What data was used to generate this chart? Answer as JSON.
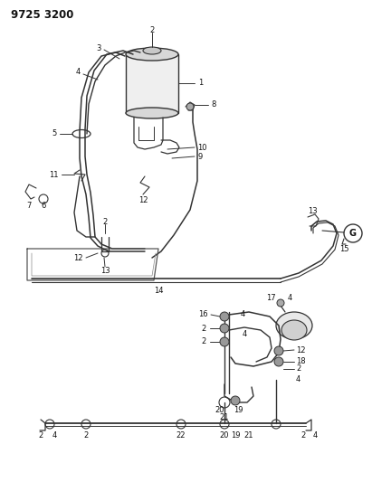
{
  "title": "9725 3200",
  "bg_color": "#ffffff",
  "line_color": "#333333",
  "text_color": "#111111",
  "title_fontsize": 8.5,
  "label_fontsize": 6.0,
  "figsize": [
    4.11,
    5.33
  ],
  "dpi": 100
}
